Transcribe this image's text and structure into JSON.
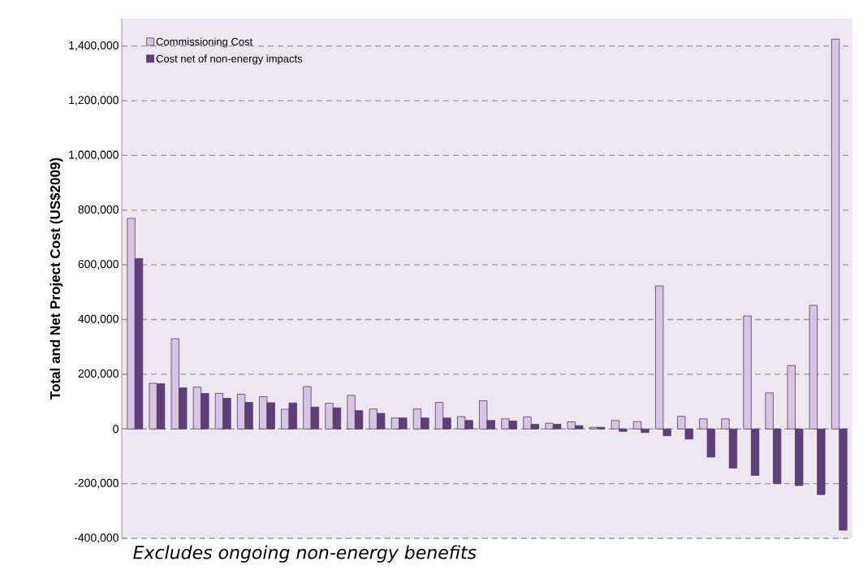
{
  "chart_data": {
    "type": "bar",
    "ylabel": "Total and Net Project Cost (US$2009)",
    "categories": [
      null,
      null,
      null,
      null,
      null,
      null,
      null,
      null,
      null,
      null,
      null,
      null,
      null,
      null,
      null,
      null,
      null,
      null,
      null,
      null,
      null,
      null,
      null,
      null,
      null,
      null,
      null,
      null,
      null,
      null,
      null,
      null,
      null
    ],
    "series": [
      {
        "name": "Commissioning Cost",
        "color": "#d7c6e2",
        "values": [
          770000,
          167000,
          330000,
          153000,
          130000,
          127000,
          118000,
          72000,
          155000,
          94000,
          123000,
          73000,
          40000,
          73000,
          97000,
          45000,
          103000,
          37000,
          44000,
          21000,
          26000,
          6000,
          31000,
          27000,
          523000,
          46000,
          37000,
          37000,
          413000,
          132000,
          232000,
          452000,
          1425000
        ]
      },
      {
        "name": "Cost net of non-energy impacts",
        "color": "#5f3e7a",
        "values": [
          623000,
          165000,
          150000,
          130000,
          112000,
          97000,
          96000,
          95000,
          80000,
          77000,
          67000,
          57000,
          40000,
          40000,
          40000,
          31000,
          31000,
          29000,
          17000,
          17000,
          12000,
          6000,
          -9000,
          -13000,
          -25000,
          -37000,
          -103000,
          -143000,
          -170000,
          -200000,
          -207000,
          -240000,
          -370000
        ]
      }
    ],
    "ylim": [
      -400000,
      1500000
    ],
    "yticks": [
      {
        "value": -400000,
        "label": "-400,000"
      },
      {
        "value": -200000,
        "label": "-200,000"
      },
      0,
      {
        "value": 200000,
        "label": "200,000"
      },
      {
        "value": 400000,
        "label": "400,000"
      },
      {
        "value": 600000,
        "label": "600,000"
      },
      {
        "value": 800000,
        "label": "800,000"
      },
      {
        "value": 1000000,
        "label": "1,000,000"
      },
      {
        "value": 1200000,
        "label": "1,200,000"
      },
      {
        "value": 1400000,
        "label": "1,400,000"
      }
    ],
    "grid": "y",
    "legend": "top left",
    "annotations": [
      "Excludes ongoing non-energy benefits"
    ]
  }
}
